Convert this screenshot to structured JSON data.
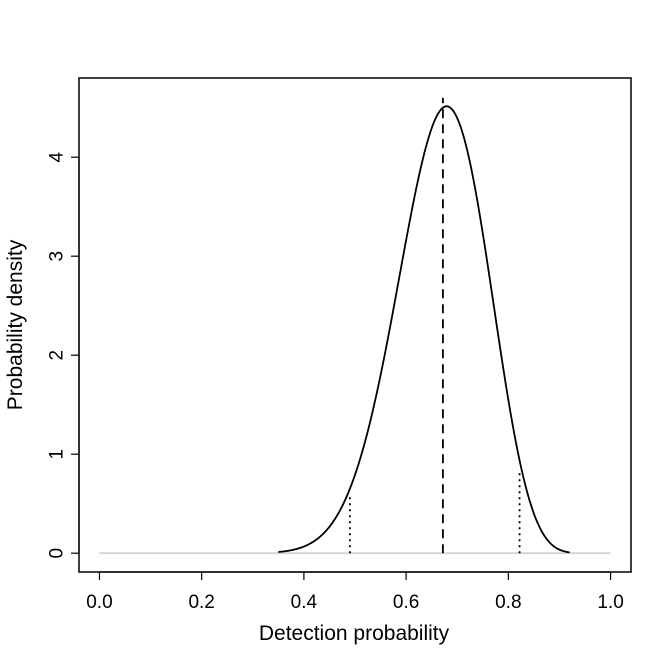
{
  "chart_data": {
    "type": "line",
    "title": "",
    "xlabel": "Detection probability",
    "ylabel": "Probability density",
    "xlim": [
      -0.04,
      1.04
    ],
    "ylim": [
      -0.19,
      4.8
    ],
    "x_ticks": [
      "0.0",
      "0.2",
      "0.4",
      "0.6",
      "0.8",
      "1.0"
    ],
    "x_tick_values": [
      0,
      0.2,
      0.4,
      0.6,
      0.8,
      1.0
    ],
    "y_ticks": [
      "0",
      "1",
      "2",
      "3",
      "4"
    ],
    "y_tick_values": [
      0,
      1,
      2,
      3,
      4
    ],
    "grid": false,
    "series": [
      {
        "style": "solid",
        "color": "#000000",
        "distribution": "beta",
        "alpha": 19,
        "beta": 9.5,
        "x_range": [
          0.35,
          0.92
        ]
      },
      {
        "style": "solid",
        "color": "#d3d3d3",
        "x": [
          0,
          1
        ],
        "y": [
          0,
          0
        ]
      }
    ],
    "vertical_lines": [
      {
        "x": 0.49,
        "y_top": 0.6,
        "style": "dotted"
      },
      {
        "x": 0.672,
        "y_top": 4.6,
        "style": "dashed"
      },
      {
        "x": 0.822,
        "y_top": 0.81,
        "style": "dotted"
      }
    ]
  }
}
